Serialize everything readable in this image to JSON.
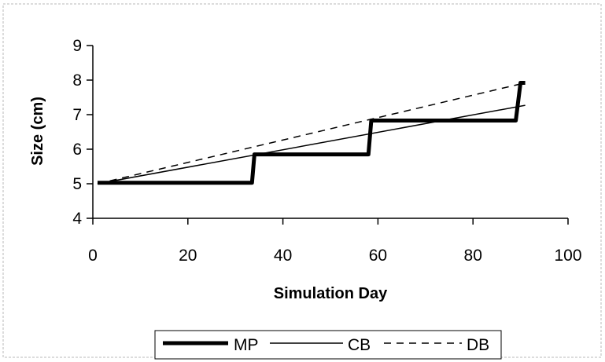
{
  "chart_data": {
    "type": "line",
    "title": "",
    "xlabel": "Simulation Day",
    "ylabel": "Size (cm)",
    "xlim": [
      0,
      100
    ],
    "ylim": [
      4,
      9
    ],
    "x_ticks": [
      0,
      20,
      40,
      60,
      80,
      100
    ],
    "y_ticks": [
      4,
      5,
      6,
      7,
      8,
      9
    ],
    "grid": false,
    "legend_position": "bottom",
    "series": [
      {
        "name": "MP",
        "style": "thick-solid",
        "color": "#000000",
        "points": [
          [
            1,
            5.03
          ],
          [
            33.5,
            5.03
          ],
          [
            34,
            5.85
          ],
          [
            58,
            5.85
          ],
          [
            58.6,
            6.83
          ],
          [
            89,
            6.83
          ],
          [
            90,
            7.92
          ],
          [
            91,
            7.92
          ]
        ]
      },
      {
        "name": "CB",
        "style": "thin-solid",
        "color": "#000000",
        "points": [
          [
            1,
            5.0
          ],
          [
            91,
            7.27
          ]
        ]
      },
      {
        "name": "DB",
        "style": "dashed",
        "color": "#000000",
        "points": [
          [
            1,
            5.0
          ],
          [
            91,
            7.92
          ]
        ]
      }
    ]
  }
}
